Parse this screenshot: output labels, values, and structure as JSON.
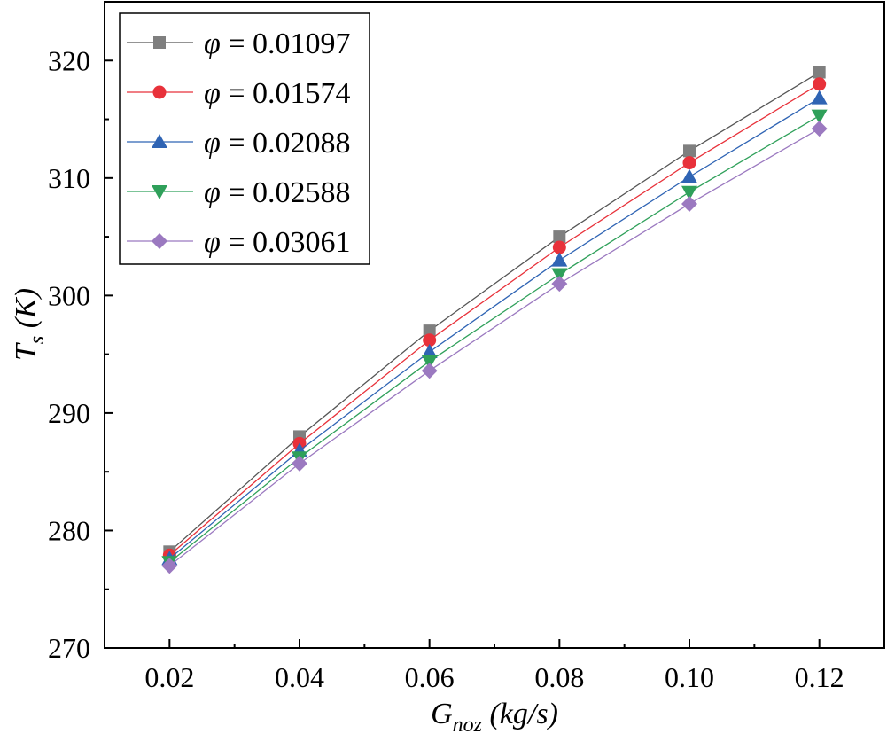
{
  "chart_data": {
    "type": "line",
    "title": "",
    "xlabel": {
      "main": "G",
      "sub": "noz",
      "unit": " (kg/s)"
    },
    "ylabel": {
      "main": "T",
      "sub": "s",
      "unit": " (K)"
    },
    "xlim": [
      0.01,
      0.13
    ],
    "ylim": [
      270,
      325
    ],
    "x": [
      0.02,
      0.04,
      0.06,
      0.08,
      0.1,
      0.12
    ],
    "xticks": [
      0.02,
      0.04,
      0.06,
      0.08,
      0.1,
      0.12
    ],
    "xtick_labels": [
      "0.02",
      "0.04",
      "0.06",
      "0.08",
      "0.10",
      "0.12"
    ],
    "yticks": [
      270,
      280,
      290,
      300,
      310,
      320
    ],
    "ytick_labels": [
      "270",
      "280",
      "290",
      "300",
      "310",
      "320"
    ],
    "grid": false,
    "legend_position": "top-left",
    "series": [
      {
        "name": "φ = 0.01097",
        "symbol": "φ",
        "value_text": " = 0.01097",
        "marker": "square",
        "color": "#7f7f7f",
        "line_color": "#555555",
        "values": [
          278.2,
          288.0,
          297.0,
          305.0,
          312.3,
          319.0
        ]
      },
      {
        "name": "φ = 0.01574",
        "symbol": "φ",
        "value_text": " = 0.01574",
        "marker": "circle",
        "color": "#e8313a",
        "line_color": "#e8313a",
        "values": [
          277.9,
          287.4,
          296.2,
          304.1,
          311.3,
          318.0
        ]
      },
      {
        "name": "φ = 0.02088",
        "symbol": "φ",
        "value_text": " = 0.02088",
        "marker": "triangle-up",
        "color": "#2f64b4",
        "line_color": "#2f64b4",
        "values": [
          277.6,
          286.8,
          295.2,
          303.0,
          310.1,
          316.8
        ]
      },
      {
        "name": "φ = 0.02588",
        "symbol": "φ",
        "value_text": " = 0.02588",
        "marker": "triangle-down",
        "color": "#2fa05a",
        "line_color": "#2fa05a",
        "values": [
          277.3,
          286.2,
          294.4,
          301.8,
          308.8,
          315.3
        ]
      },
      {
        "name": "φ = 0.03061",
        "symbol": "φ",
        "value_text": " = 0.03061",
        "marker": "diamond",
        "color": "#9b79c0",
        "line_color": "#9b79c0",
        "values": [
          277.0,
          285.7,
          293.6,
          301.0,
          307.8,
          314.2
        ]
      }
    ]
  }
}
